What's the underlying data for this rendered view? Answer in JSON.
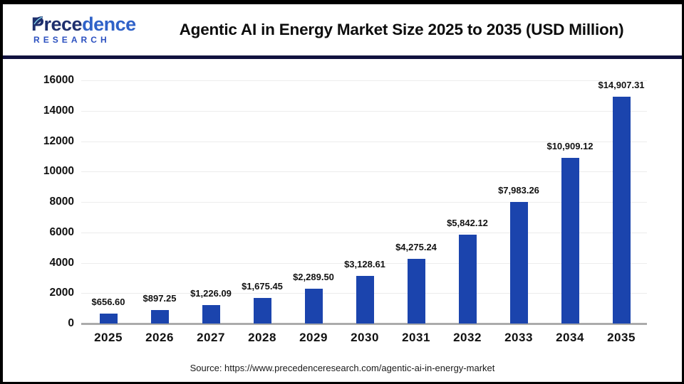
{
  "header": {
    "logo": {
      "name_part1": "Prece",
      "name_part2": "dence",
      "subtitle": "RESEARCH"
    },
    "title": "Agentic AI in Energy Market Size 2025 to 2035 (USD Million)"
  },
  "chart_data": {
    "type": "bar",
    "title": "Agentic AI in Energy Market Size 2025 to 2035 (USD Million)",
    "categories": [
      "2025",
      "2026",
      "2027",
      "2028",
      "2029",
      "2030",
      "2031",
      "2032",
      "2033",
      "2034",
      "2035"
    ],
    "values": [
      656.6,
      897.25,
      1226.09,
      1675.45,
      2289.5,
      3128.61,
      4275.24,
      5842.12,
      7983.26,
      10909.12,
      14907.31
    ],
    "value_labels": [
      "$656.60",
      "$897.25",
      "$1,226.09",
      "$1,675.45",
      "$2,289.50",
      "$3,128.61",
      "$4,275.24",
      "$5,842.12",
      "$7,983.26",
      "$10,909.12",
      "$14,907.31"
    ],
    "xlabel": "",
    "ylabel": "",
    "ylim": [
      0,
      16000
    ],
    "yticks": [
      0,
      2000,
      4000,
      6000,
      8000,
      10000,
      12000,
      14000,
      16000
    ],
    "grid": true,
    "legend": false,
    "bar_color": "#1b44ad"
  },
  "footer": {
    "source": "Source: https://www.precedenceresearch.com/agentic-ai-in-energy-market"
  },
  "colors": {
    "bar": "#1b44ad",
    "divider": "#11123f",
    "grid": "#ececec",
    "baseline": "#ababab",
    "logo_dark": "#1e2f6d",
    "logo_light": "#2f62c8",
    "logo_research": "#2b50c0"
  }
}
